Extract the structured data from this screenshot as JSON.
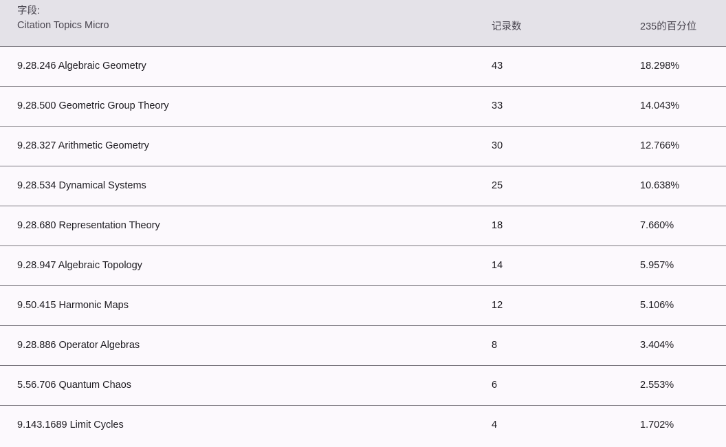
{
  "header": {
    "field_label": "字段:",
    "field_name": "Citation Topics Micro",
    "count_label": "记录数",
    "percent_label": "235的百分位"
  },
  "rows": [
    {
      "topic": "9.28.246 Algebraic Geometry",
      "count": "43",
      "percent": "18.298%"
    },
    {
      "topic": "9.28.500 Geometric Group Theory",
      "count": "33",
      "percent": "14.043%"
    },
    {
      "topic": "9.28.327 Arithmetic Geometry",
      "count": "30",
      "percent": "12.766%"
    },
    {
      "topic": "9.28.534 Dynamical Systems",
      "count": "25",
      "percent": "10.638%"
    },
    {
      "topic": "9.28.680 Representation Theory",
      "count": "18",
      "percent": "7.660%"
    },
    {
      "topic": "9.28.947 Algebraic Topology",
      "count": "14",
      "percent": "5.957%"
    },
    {
      "topic": "9.50.415 Harmonic Maps",
      "count": "12",
      "percent": "5.106%"
    },
    {
      "topic": "9.28.886 Operator Algebras",
      "count": "8",
      "percent": "3.404%"
    },
    {
      "topic": "5.56.706 Quantum Chaos",
      "count": "6",
      "percent": "2.553%"
    },
    {
      "topic": "9.143.1689 Limit Cycles",
      "count": "4",
      "percent": "1.702%"
    }
  ]
}
